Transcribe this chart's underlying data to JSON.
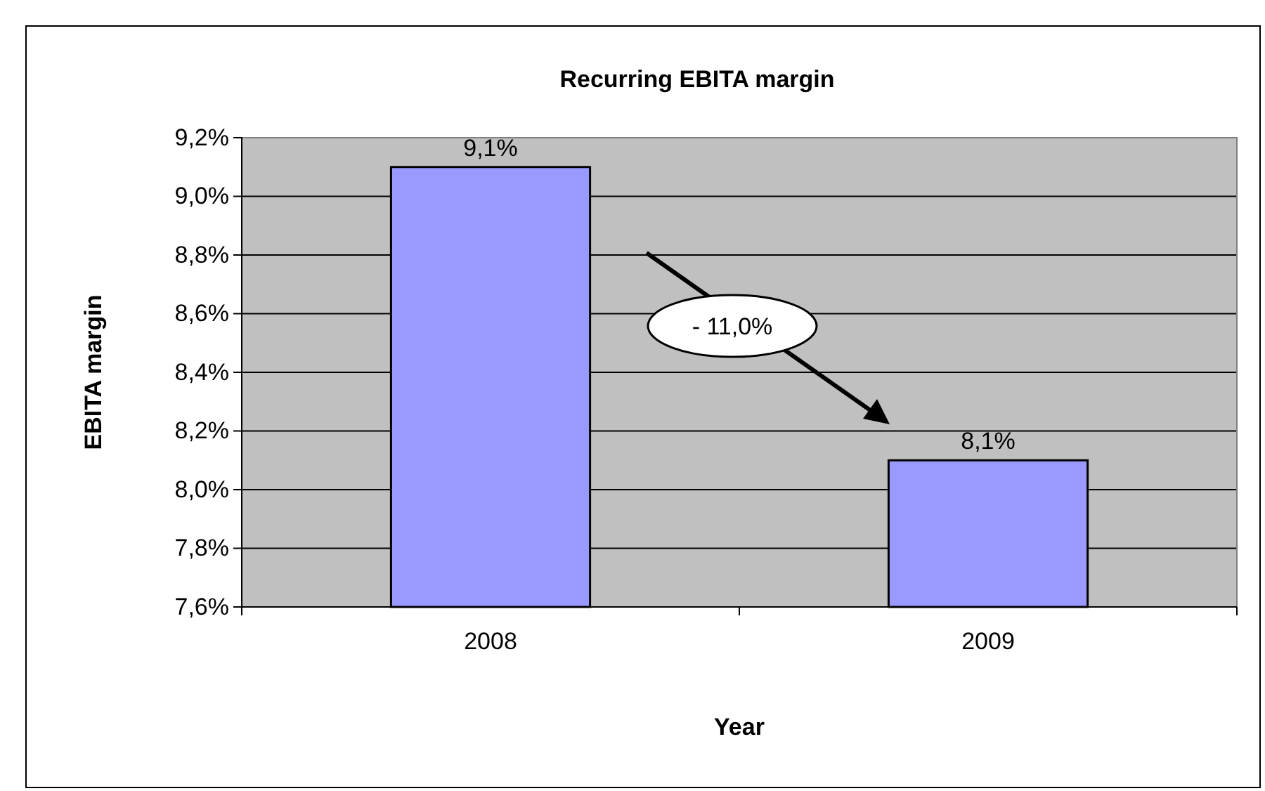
{
  "chart_data": {
    "type": "bar",
    "title": "Recurring EBITA margin",
    "xlabel": "Year",
    "ylabel": "EBITA margin",
    "categories": [
      "2008",
      "2009"
    ],
    "series": [
      {
        "color": "#9999ff",
        "values": [
          9.1,
          8.1
        ],
        "value_labels": [
          "9,1%",
          "8,1%"
        ]
      }
    ],
    "ylim": [
      7.6,
      9.2
    ],
    "yticks": [
      {
        "value": 7.6,
        "label": "7,6%"
      },
      {
        "value": 7.8,
        "label": "7,8%"
      },
      {
        "value": 8.0,
        "label": "8,0%"
      },
      {
        "value": 8.2,
        "label": "8,2%"
      },
      {
        "value": 8.4,
        "label": "8,4%"
      },
      {
        "value": 8.6,
        "label": "8,6%"
      },
      {
        "value": 8.8,
        "label": "8,8%"
      },
      {
        "value": 9.0,
        "label": "9,0%"
      },
      {
        "value": 9.2,
        "label": "9,2%"
      }
    ],
    "grid": "y",
    "annotations": [
      "- 11,0%"
    ]
  }
}
